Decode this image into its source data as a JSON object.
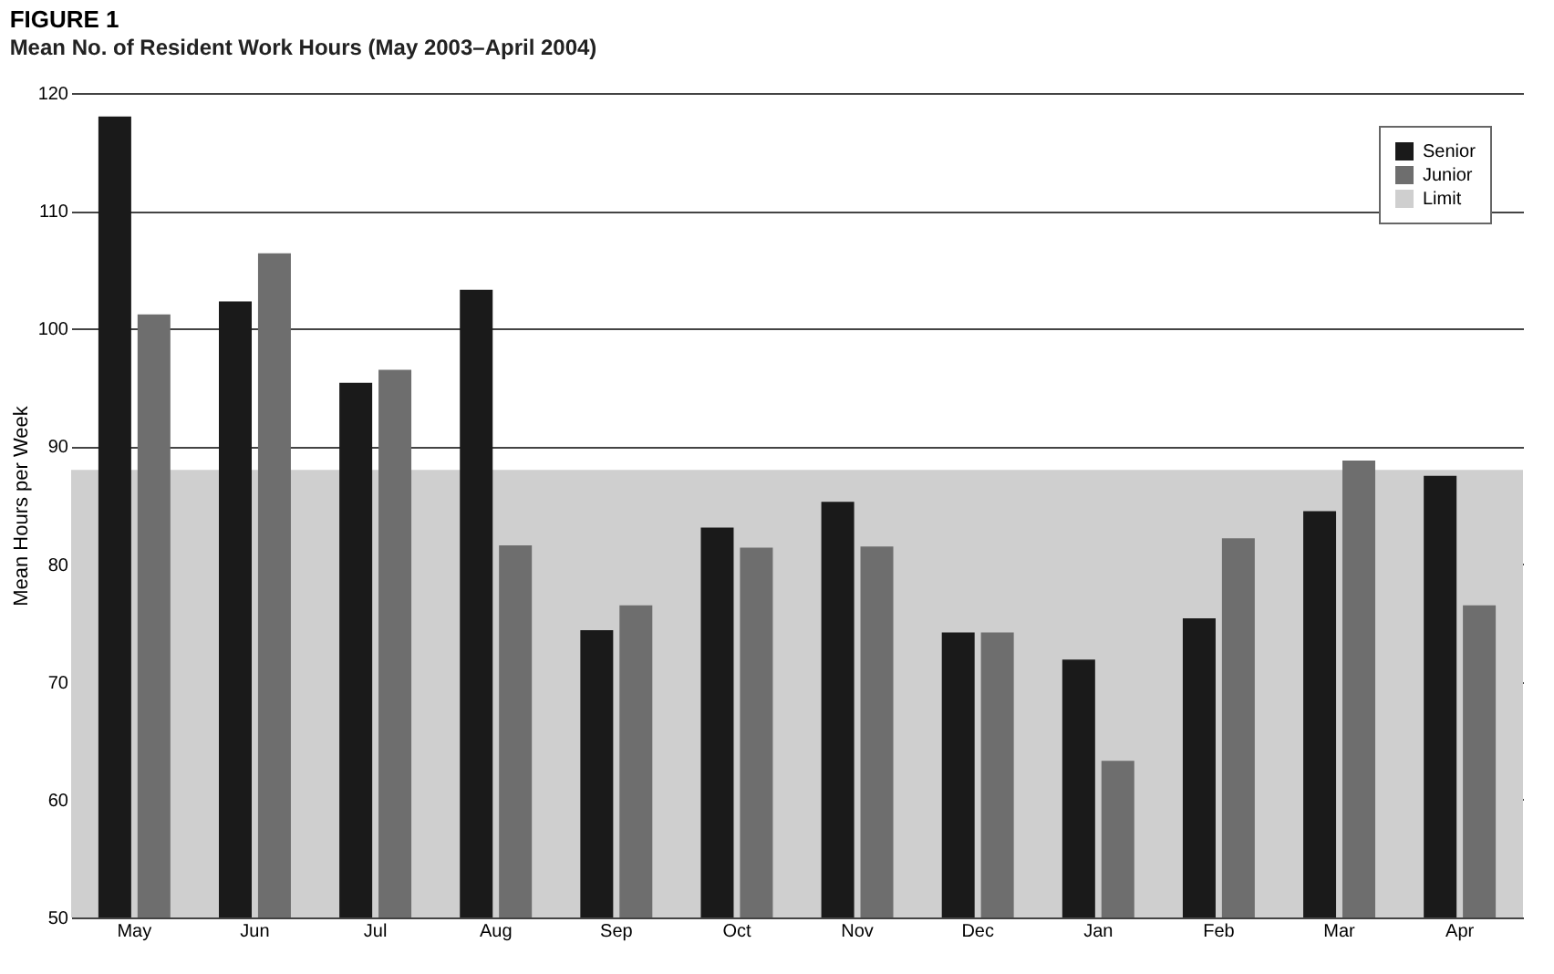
{
  "chart_data": {
    "type": "bar",
    "title": "FIGURE 1",
    "subtitle": "Mean No. of Resident Work Hours (May 2003–April 2004)",
    "ylabel": "Mean Hours per Week",
    "categories": [
      "May",
      "Jun",
      "Jul",
      "Aug",
      "Sep",
      "Oct",
      "Nov",
      "Dec",
      "Jan",
      "Feb",
      "Mar",
      "Apr"
    ],
    "series": [
      {
        "name": "Senior",
        "color": "#1a1a1a",
        "values": [
          118,
          102.3,
          95.4,
          103.3,
          74.4,
          83.1,
          85.3,
          74.2,
          71.9,
          75.4,
          84.5,
          87.5
        ]
      },
      {
        "name": "Junior",
        "color": "#6e6e6e",
        "values": [
          101.2,
          106.4,
          96.5,
          81.6,
          76.5,
          81.4,
          81.5,
          74.2,
          63.3,
          82.2,
          88.8,
          76.5
        ]
      }
    ],
    "bands": [
      {
        "axis": "y",
        "from": 50,
        "to": 88,
        "label": "Limit",
        "color": "#cfcfcf"
      }
    ],
    "ylim": [
      50,
      120
    ],
    "yticks": [
      50,
      60,
      70,
      80,
      90,
      100,
      110,
      120
    ],
    "grid": "y",
    "legend": "top right"
  }
}
